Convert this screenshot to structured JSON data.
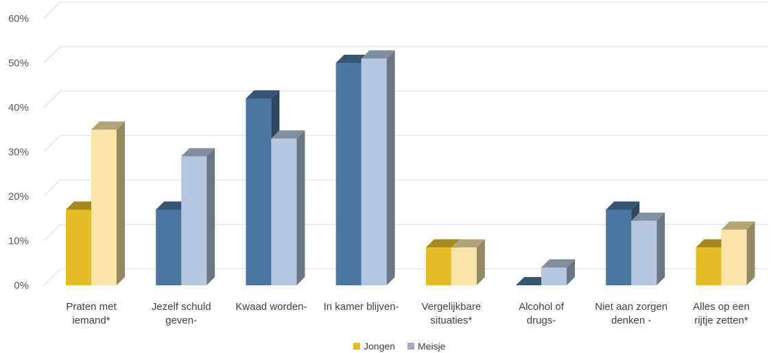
{
  "chart_data": {
    "type": "bar",
    "categories": [
      [
        "Praten met",
        "iemand*"
      ],
      [
        "Jezelf schuld",
        "geven-"
      ],
      [
        "Kwaad worden-"
      ],
      [
        "In kamer blijven-"
      ],
      [
        "Vergelijkbare",
        "situaties*"
      ],
      [
        "Alcohol of",
        "drugs-"
      ],
      [
        "Niet aan zorgen",
        "denken -"
      ],
      [
        "Alles op een",
        "rijtje zetten*"
      ]
    ],
    "series": [
      {
        "name": "Jongen",
        "values": [
          17,
          17,
          42,
          50,
          8.5,
          0,
          17,
          8.5
        ]
      },
      {
        "name": "Meisje",
        "values": [
          35,
          29,
          33,
          51,
          8.5,
          4,
          14.5,
          12.5
        ]
      }
    ],
    "category_color_scheme": [
      "gold",
      "blue",
      "blue",
      "blue",
      "gold",
      "blue",
      "blue",
      "gold"
    ],
    "colors": {
      "blue_dark": "#4E76A3",
      "blue_light": "#B4C7DE",
      "gold_dark": "#E5BD2A",
      "gold_light": "#F8E4A6",
      "legend_jongen": "#E5BD2A",
      "legend_meisje": "#B3A2C8"
    },
    "y_ticks": [
      "0%",
      "10%",
      "20%",
      "30%",
      "40%",
      "50%",
      "60%"
    ],
    "ylim": [
      0,
      60
    ],
    "grid": true,
    "legend_position": "bottom",
    "title": "",
    "xlabel": "",
    "ylabel": ""
  }
}
